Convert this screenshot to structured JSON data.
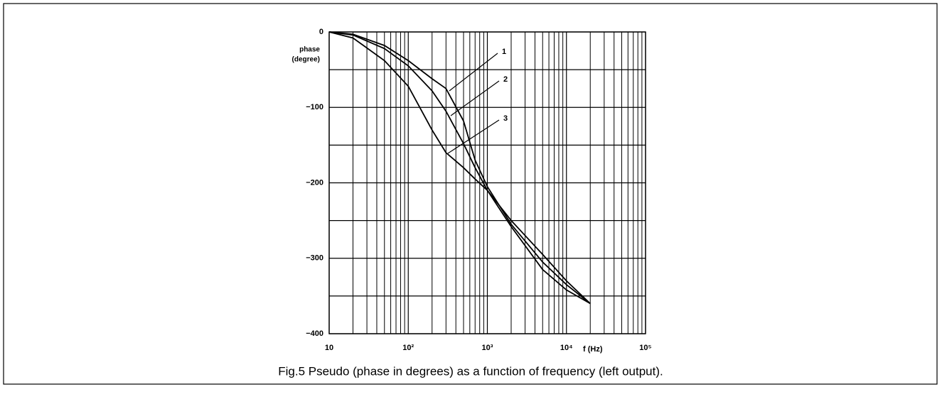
{
  "chart_data": {
    "type": "line",
    "caption": "Fig.5 Pseudo (phase in degrees) as a function of frequency (left output).",
    "ylabel": [
      "phase",
      "(degree)"
    ],
    "xlabel": "f (Hz)",
    "x": [
      10,
      20,
      50,
      100,
      200,
      300,
      500,
      700,
      1000,
      2000,
      5000,
      10000,
      20000
    ],
    "series": [
      {
        "name": "1",
        "color": "#000000",
        "values": [
          0,
          -3,
          -18,
          -38,
          -62,
          -75,
          -118,
          -170,
          -205,
          -255,
          -305,
          -335,
          -360
        ]
      },
      {
        "name": "2",
        "color": "#000000",
        "values": [
          0,
          -4,
          -22,
          -45,
          -78,
          -105,
          -148,
          -180,
          -210,
          -258,
          -315,
          -342,
          -360
        ]
      },
      {
        "name": "3",
        "color": "#000000",
        "values": [
          0,
          -8,
          -38,
          -72,
          -130,
          -160,
          -180,
          -195,
          -210,
          -250,
          -295,
          -330,
          -360
        ]
      }
    ],
    "xlim": [
      10,
      100000
    ],
    "xlog": true,
    "xticks": [
      10,
      {
        "value": 100,
        "label": "10²"
      },
      {
        "value": 1000,
        "label": "10³"
      },
      {
        "value": 10000,
        "label": "10⁴"
      },
      {
        "value": 100000,
        "label": "10⁵"
      }
    ],
    "ylim": [
      -400,
      0
    ],
    "yticks": [
      0,
      {
        "value": -100,
        "label": "−100"
      },
      {
        "value": -200,
        "label": "−200"
      },
      {
        "value": -300,
        "label": "−300"
      },
      {
        "value": -400,
        "label": "−400"
      }
    ],
    "yminorticks": [
      -50,
      -150,
      -250,
      -350
    ],
    "grid": true
  }
}
